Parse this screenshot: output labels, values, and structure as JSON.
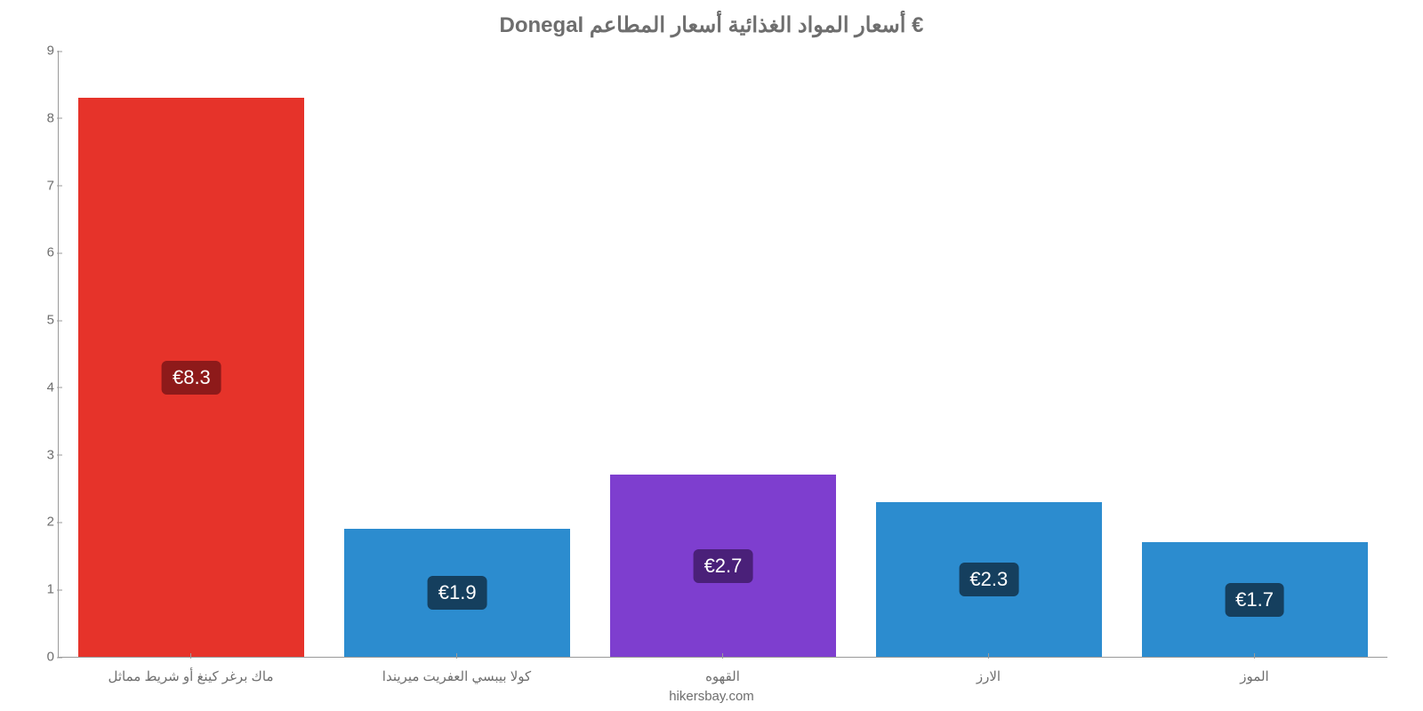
{
  "chart": {
    "type": "bar",
    "title": "Donegal أسعار المواد الغذائية أسعار المطاعم €",
    "title_color": "#6e6e6e",
    "title_fontsize": 24,
    "background_color": "#ffffff",
    "axis_color": "#9a9a9a",
    "text_color": "#6e6e6e",
    "label_fontsize": 15,
    "ylim": [
      0,
      9
    ],
    "ytick_step": 1,
    "yticks": [
      "0",
      "1",
      "2",
      "3",
      "4",
      "5",
      "6",
      "7",
      "8",
      "9"
    ],
    "bar_width_pct": 85,
    "categories": [
      "ماك برغر كينغ أو شريط مماثل",
      "كولا بيبسي العفريت ميريندا",
      "القهوه",
      "الارز",
      "الموز"
    ],
    "values": [
      8.3,
      1.9,
      2.7,
      2.3,
      1.7
    ],
    "value_labels": [
      "€8.3",
      "€1.9",
      "€2.7",
      "€2.3",
      "€1.7"
    ],
    "bar_colors": [
      "#e6332a",
      "#2c8ccf",
      "#7e3ecf",
      "#2c8ccf",
      "#2c8ccf"
    ],
    "badge_colors": [
      "#8e1a1a",
      "#153f5e",
      "#4a2079",
      "#153f5e",
      "#153f5e"
    ],
    "badge_text_color": "#ffffff",
    "badge_fontsize": 22,
    "credit": "hikersbay.com"
  }
}
